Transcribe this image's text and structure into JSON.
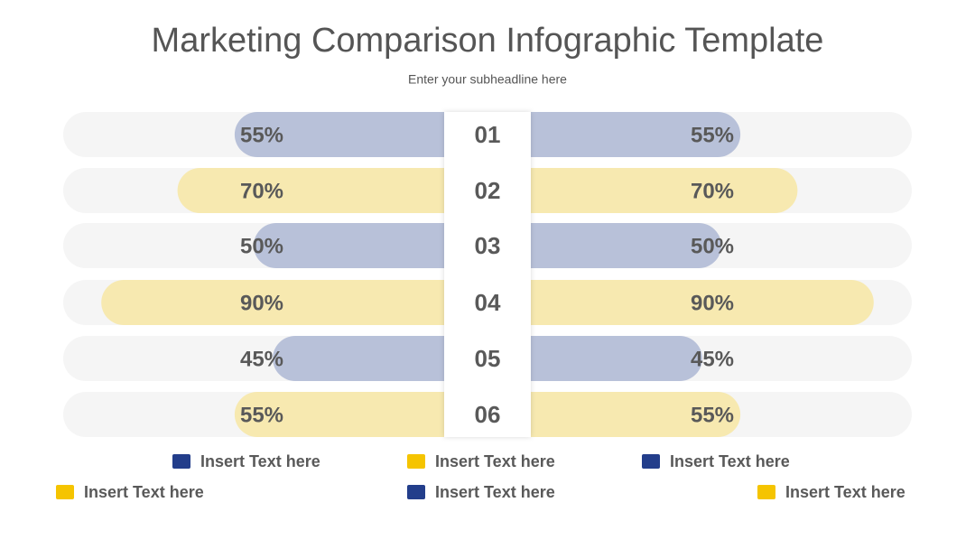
{
  "chart_data": {
    "type": "butterfly",
    "title": "Marketing Comparison Infographic Template",
    "subtitle": "Enter your subheadline here",
    "categories": [
      "01",
      "02",
      "03",
      "04",
      "05",
      "06"
    ],
    "colors": [
      "#b8c1d9",
      "#f7e9b0",
      "#b8c1d9",
      "#f7e9b0",
      "#b8c1d9",
      "#f7e9b0"
    ],
    "xlim": [
      0,
      100
    ],
    "series": [
      {
        "values": [
          55,
          70,
          50,
          90,
          45,
          55
        ],
        "value_labels": [
          "55%",
          "70%",
          "50%",
          "90%",
          "45%",
          "55%"
        ]
      },
      {
        "values": [
          55,
          70,
          50,
          90,
          45,
          55
        ],
        "value_labels": [
          "55%",
          "70%",
          "50%",
          "90%",
          "45%",
          "55%"
        ]
      }
    ],
    "legend": [
      {
        "label": "Insert Text here",
        "color": "#233e8b"
      },
      {
        "label": "Insert Text here",
        "color": "#f5c400"
      },
      {
        "label": "Insert Text here",
        "color": "#233e8b"
      },
      {
        "label": "Insert Text here",
        "color": "#f5c400"
      },
      {
        "label": "Insert Text here",
        "color": "#233e8b"
      },
      {
        "label": "Insert Text here",
        "color": "#f5c400"
      }
    ]
  }
}
